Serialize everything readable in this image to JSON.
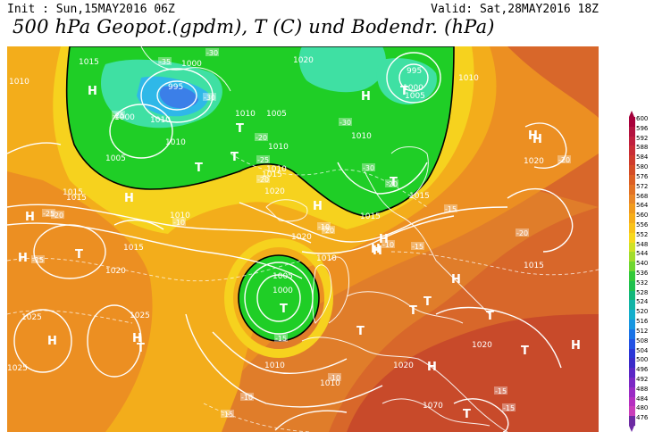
{
  "header": {
    "init": "Init : Sun,15MAY2016 06Z",
    "valid": "Valid: Sat,28MAY2016 18Z",
    "title": "500 hPa Geopot.(gpdm), T (C) und Bodendr. (hPa)"
  },
  "legend": {
    "levels": [
      {
        "label": "600",
        "color": "#a8003b"
      },
      {
        "label": "596",
        "color": "#b3133f"
      },
      {
        "label": "592",
        "color": "#c01f3d"
      },
      {
        "label": "588",
        "color": "#c92d35"
      },
      {
        "label": "584",
        "color": "#cf3b2c"
      },
      {
        "label": "580",
        "color": "#d44c26"
      },
      {
        "label": "576",
        "color": "#dc5f24"
      },
      {
        "label": "572",
        "color": "#e27225"
      },
      {
        "label": "568",
        "color": "#e98628"
      },
      {
        "label": "564",
        "color": "#f09a1e"
      },
      {
        "label": "560",
        "color": "#f6ad1a"
      },
      {
        "label": "556",
        "color": "#f9c21a"
      },
      {
        "label": "552",
        "color": "#f7d81e"
      },
      {
        "label": "548",
        "color": "#cfe126"
      },
      {
        "label": "544",
        "color": "#a2dc2c"
      },
      {
        "label": "540",
        "color": "#6fd630"
      },
      {
        "label": "536",
        "color": "#33c93a"
      },
      {
        "label": "532",
        "color": "#1fc04e"
      },
      {
        "label": "528",
        "color": "#12b77a"
      },
      {
        "label": "524",
        "color": "#12b4a6"
      },
      {
        "label": "520",
        "color": "#14aecb"
      },
      {
        "label": "516",
        "color": "#1796e0"
      },
      {
        "label": "512",
        "color": "#1a73e6"
      },
      {
        "label": "508",
        "color": "#2251e3"
      },
      {
        "label": "504",
        "color": "#2a35d6"
      },
      {
        "label": "500",
        "color": "#3a2ac8"
      },
      {
        "label": "496",
        "color": "#5a27c5"
      },
      {
        "label": "492",
        "color": "#7b28c4"
      },
      {
        "label": "488",
        "color": "#9a2bc4"
      },
      {
        "label": "484",
        "color": "#b52fc0"
      },
      {
        "label": "480",
        "color": "#c93dba"
      },
      {
        "label": "476",
        "color": "#6d2ba3"
      }
    ]
  },
  "map": {
    "pressure_labels": [
      "1015",
      "1000",
      "1020",
      "1010",
      "995",
      "1000",
      "1005",
      "1010",
      "995",
      "1010",
      "1000",
      "1005",
      "1010",
      "1010",
      "1005",
      "1010",
      "1010",
      "1015",
      "1020",
      "1010",
      "1015",
      "1015",
      "1020",
      "1010",
      "1015",
      "1020",
      "1015",
      "1015",
      "1010",
      "1005",
      "1000",
      "1020",
      "1025",
      "1025",
      "1025",
      "1010",
      "1010",
      "1020",
      "1020",
      "1070",
      "1015"
    ],
    "temp_labels": [
      "-30",
      "-35",
      "-30",
      "-25",
      "-30",
      "-20",
      "-25",
      "-30",
      "-20",
      "-20",
      "-25",
      "-20",
      "-15",
      "-10",
      "-10",
      "-10",
      "-15",
      "-20",
      "-20",
      "-15",
      "-20",
      "-15",
      "-10",
      "-15",
      "-15",
      "-10",
      "-15"
    ],
    "centers": [
      "H",
      "H",
      "H",
      "H",
      "T",
      "T",
      "T",
      "H",
      "T",
      "T",
      "T",
      "H",
      "T",
      "H",
      "T",
      "H",
      "H",
      "H",
      "T",
      "H",
      "H",
      "T",
      "H",
      "H",
      "T",
      "T",
      "H",
      "T",
      "T",
      "H"
    ],
    "zone_colors": {
      "green": "#1fce26",
      "cyan": "#3fe0a3",
      "blue": "#2fb8e8",
      "deepblue": "#3b7fe8",
      "yellow": "#f6d21e",
      "gold": "#f3b51a",
      "orange": "#ee9a1f",
      "dark": "#d55a23",
      "red": "#c5412a"
    }
  }
}
